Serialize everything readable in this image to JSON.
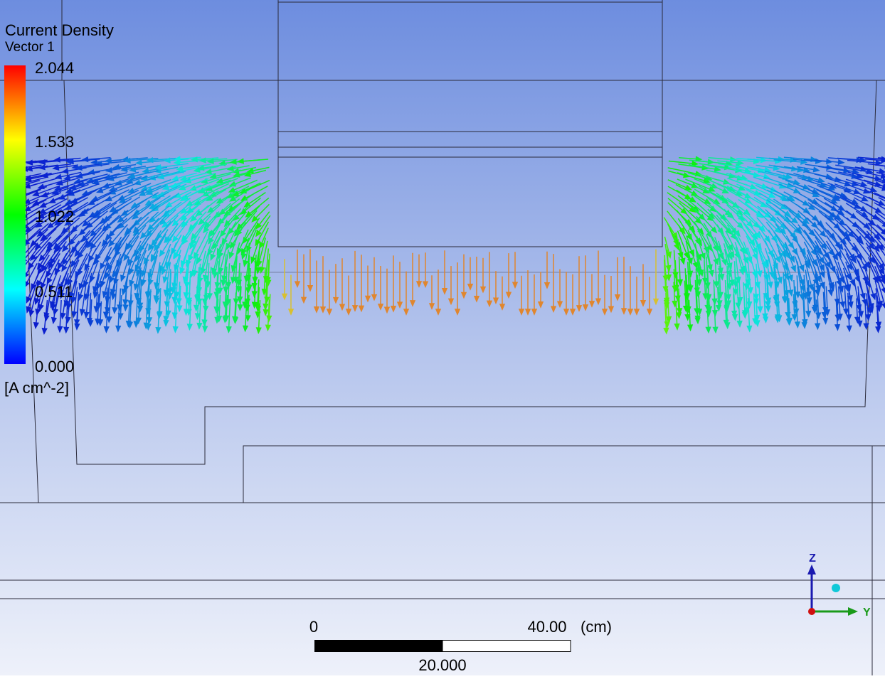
{
  "legend": {
    "title": "Current Density",
    "subtitle": "Vector 1",
    "ticks": [
      "2.044",
      "1.533",
      "1.022",
      "0.511",
      "0.000"
    ],
    "unit": "[A cm^-2]"
  },
  "scale_bar": {
    "start": "0",
    "end": "40.00",
    "unit": "(cm)",
    "middle": "20.000"
  },
  "axes": {
    "z": "Z",
    "y": "Y"
  }
}
